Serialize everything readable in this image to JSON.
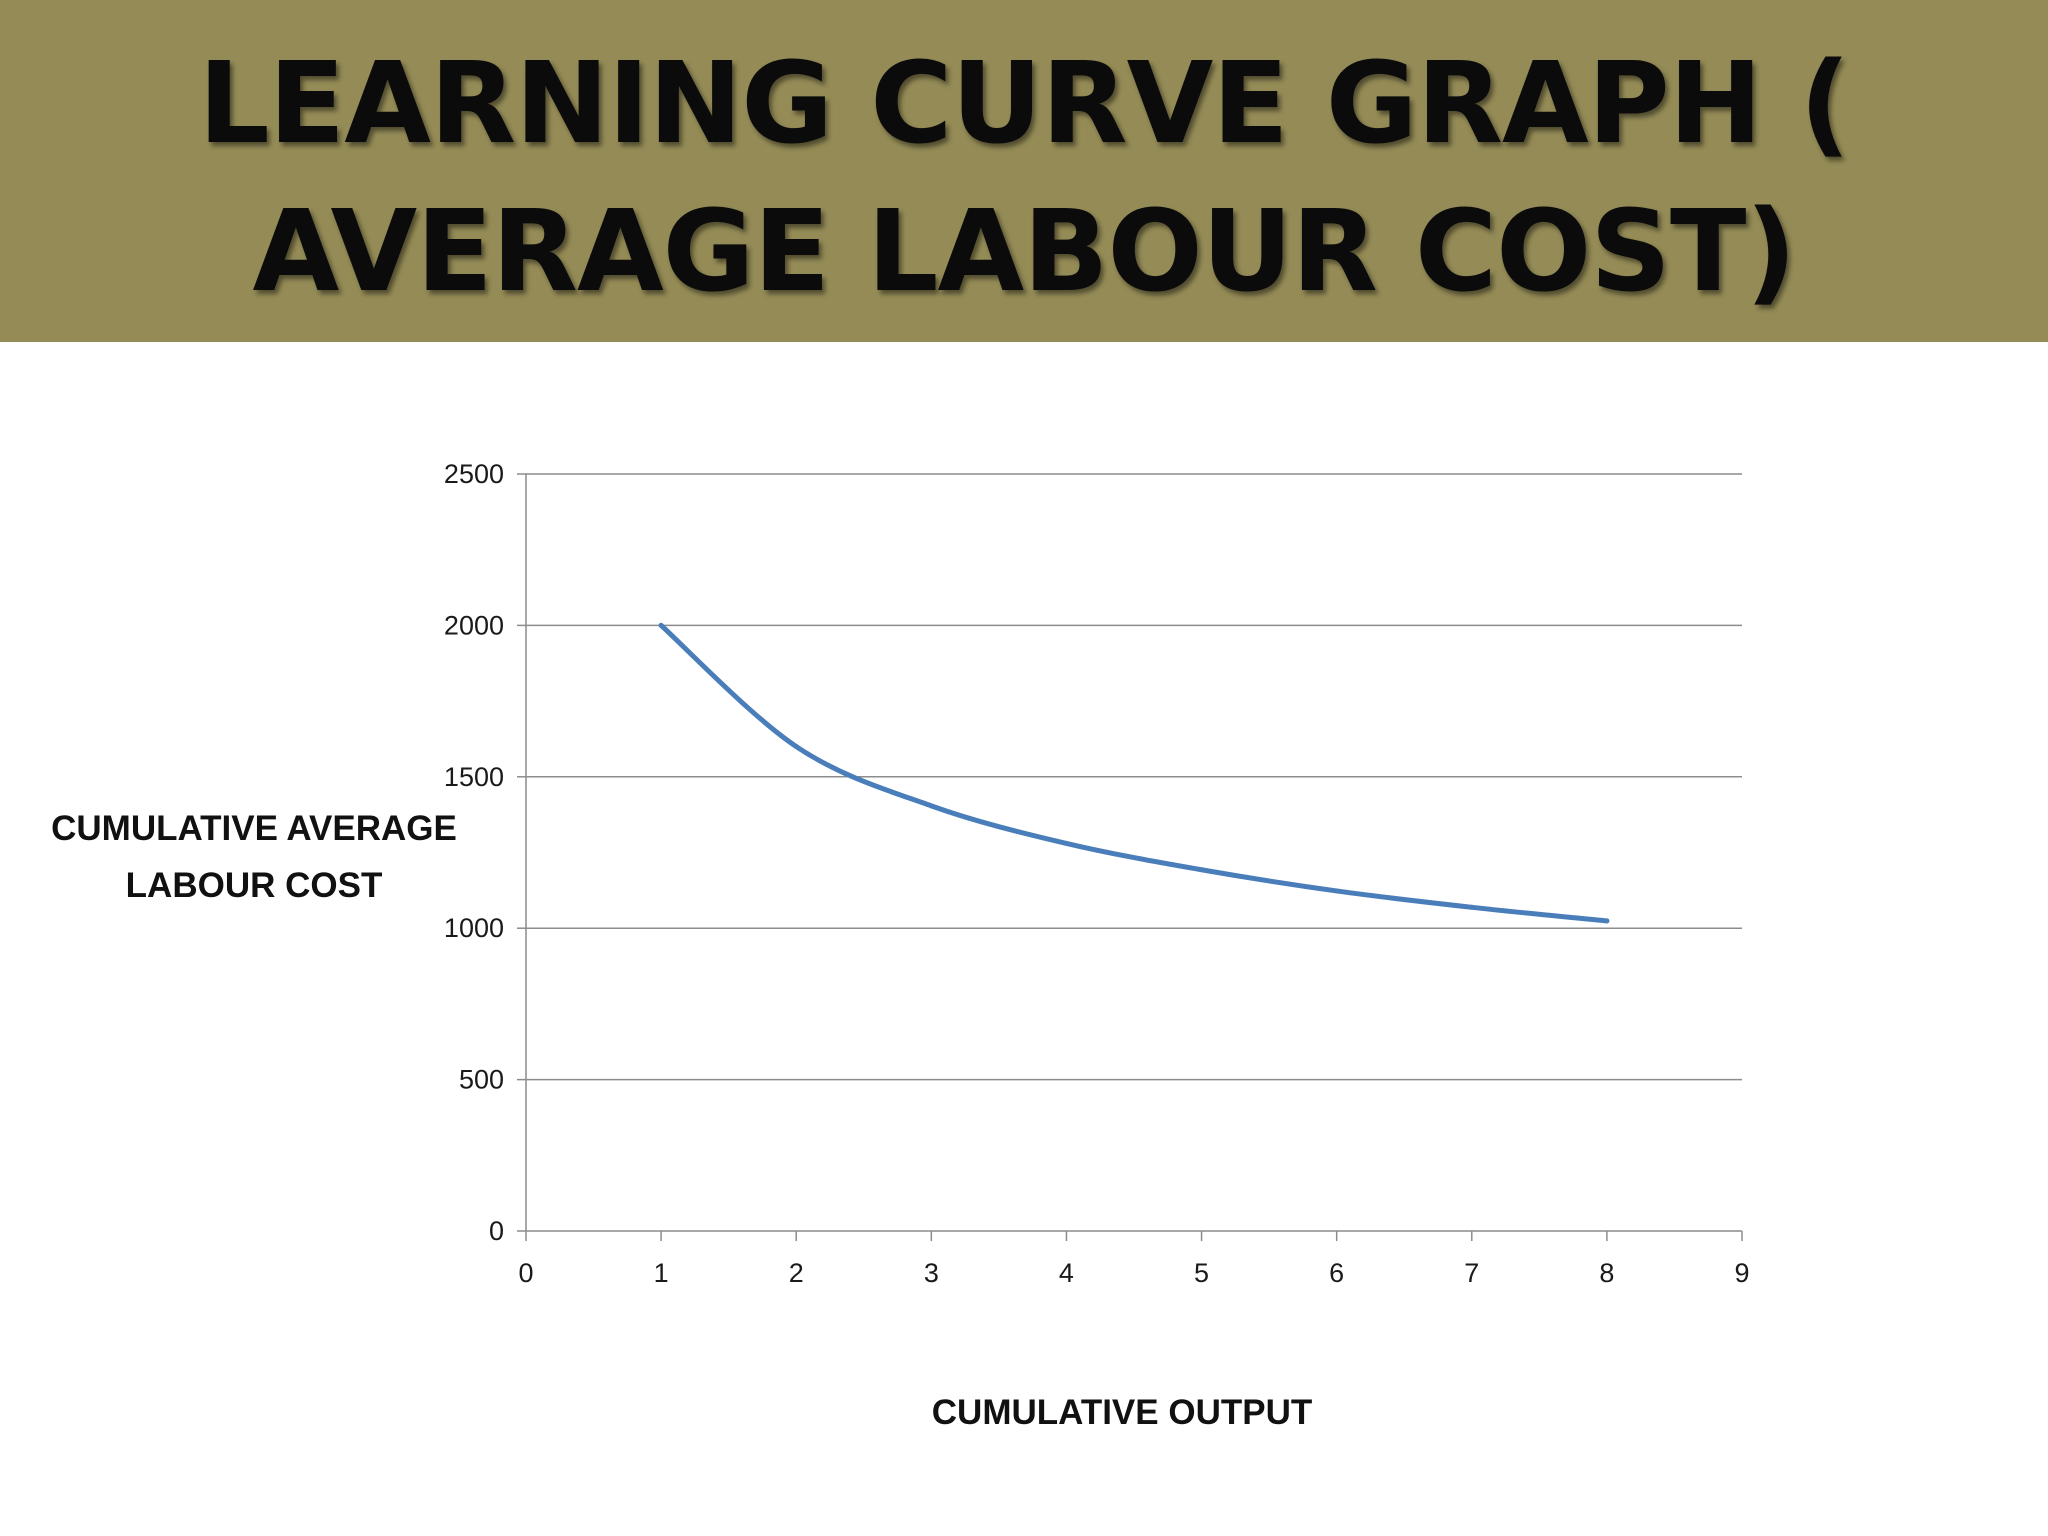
{
  "slide": {
    "title": "LEARNING CURVE GRAPH ( AVERAGE LABOUR COST)",
    "banner_color": "#948b56",
    "title_color": "#0b0b0b"
  },
  "chart_data": {
    "type": "line",
    "title": "",
    "xlabel": "CUMULATIVE OUTPUT",
    "ylabel_lines": [
      "CUMULATIVE AVERAGE",
      "LABOUR COST"
    ],
    "xlim": [
      0,
      9
    ],
    "ylim": [
      0,
      2500
    ],
    "x_ticks": [
      0,
      1,
      2,
      3,
      4,
      5,
      6,
      7,
      8,
      9
    ],
    "y_ticks": [
      0,
      500,
      1000,
      1500,
      2000,
      2500
    ],
    "grid": "horizontal",
    "legend": "none",
    "line_color": "#4a7ebb",
    "series": [
      {
        "x": [
          1,
          2,
          3,
          4,
          5,
          6,
          7,
          8
        ],
        "values": [
          2000,
          1600,
          1404,
          1280,
          1193,
          1123,
          1069,
          1024
        ]
      }
    ]
  }
}
